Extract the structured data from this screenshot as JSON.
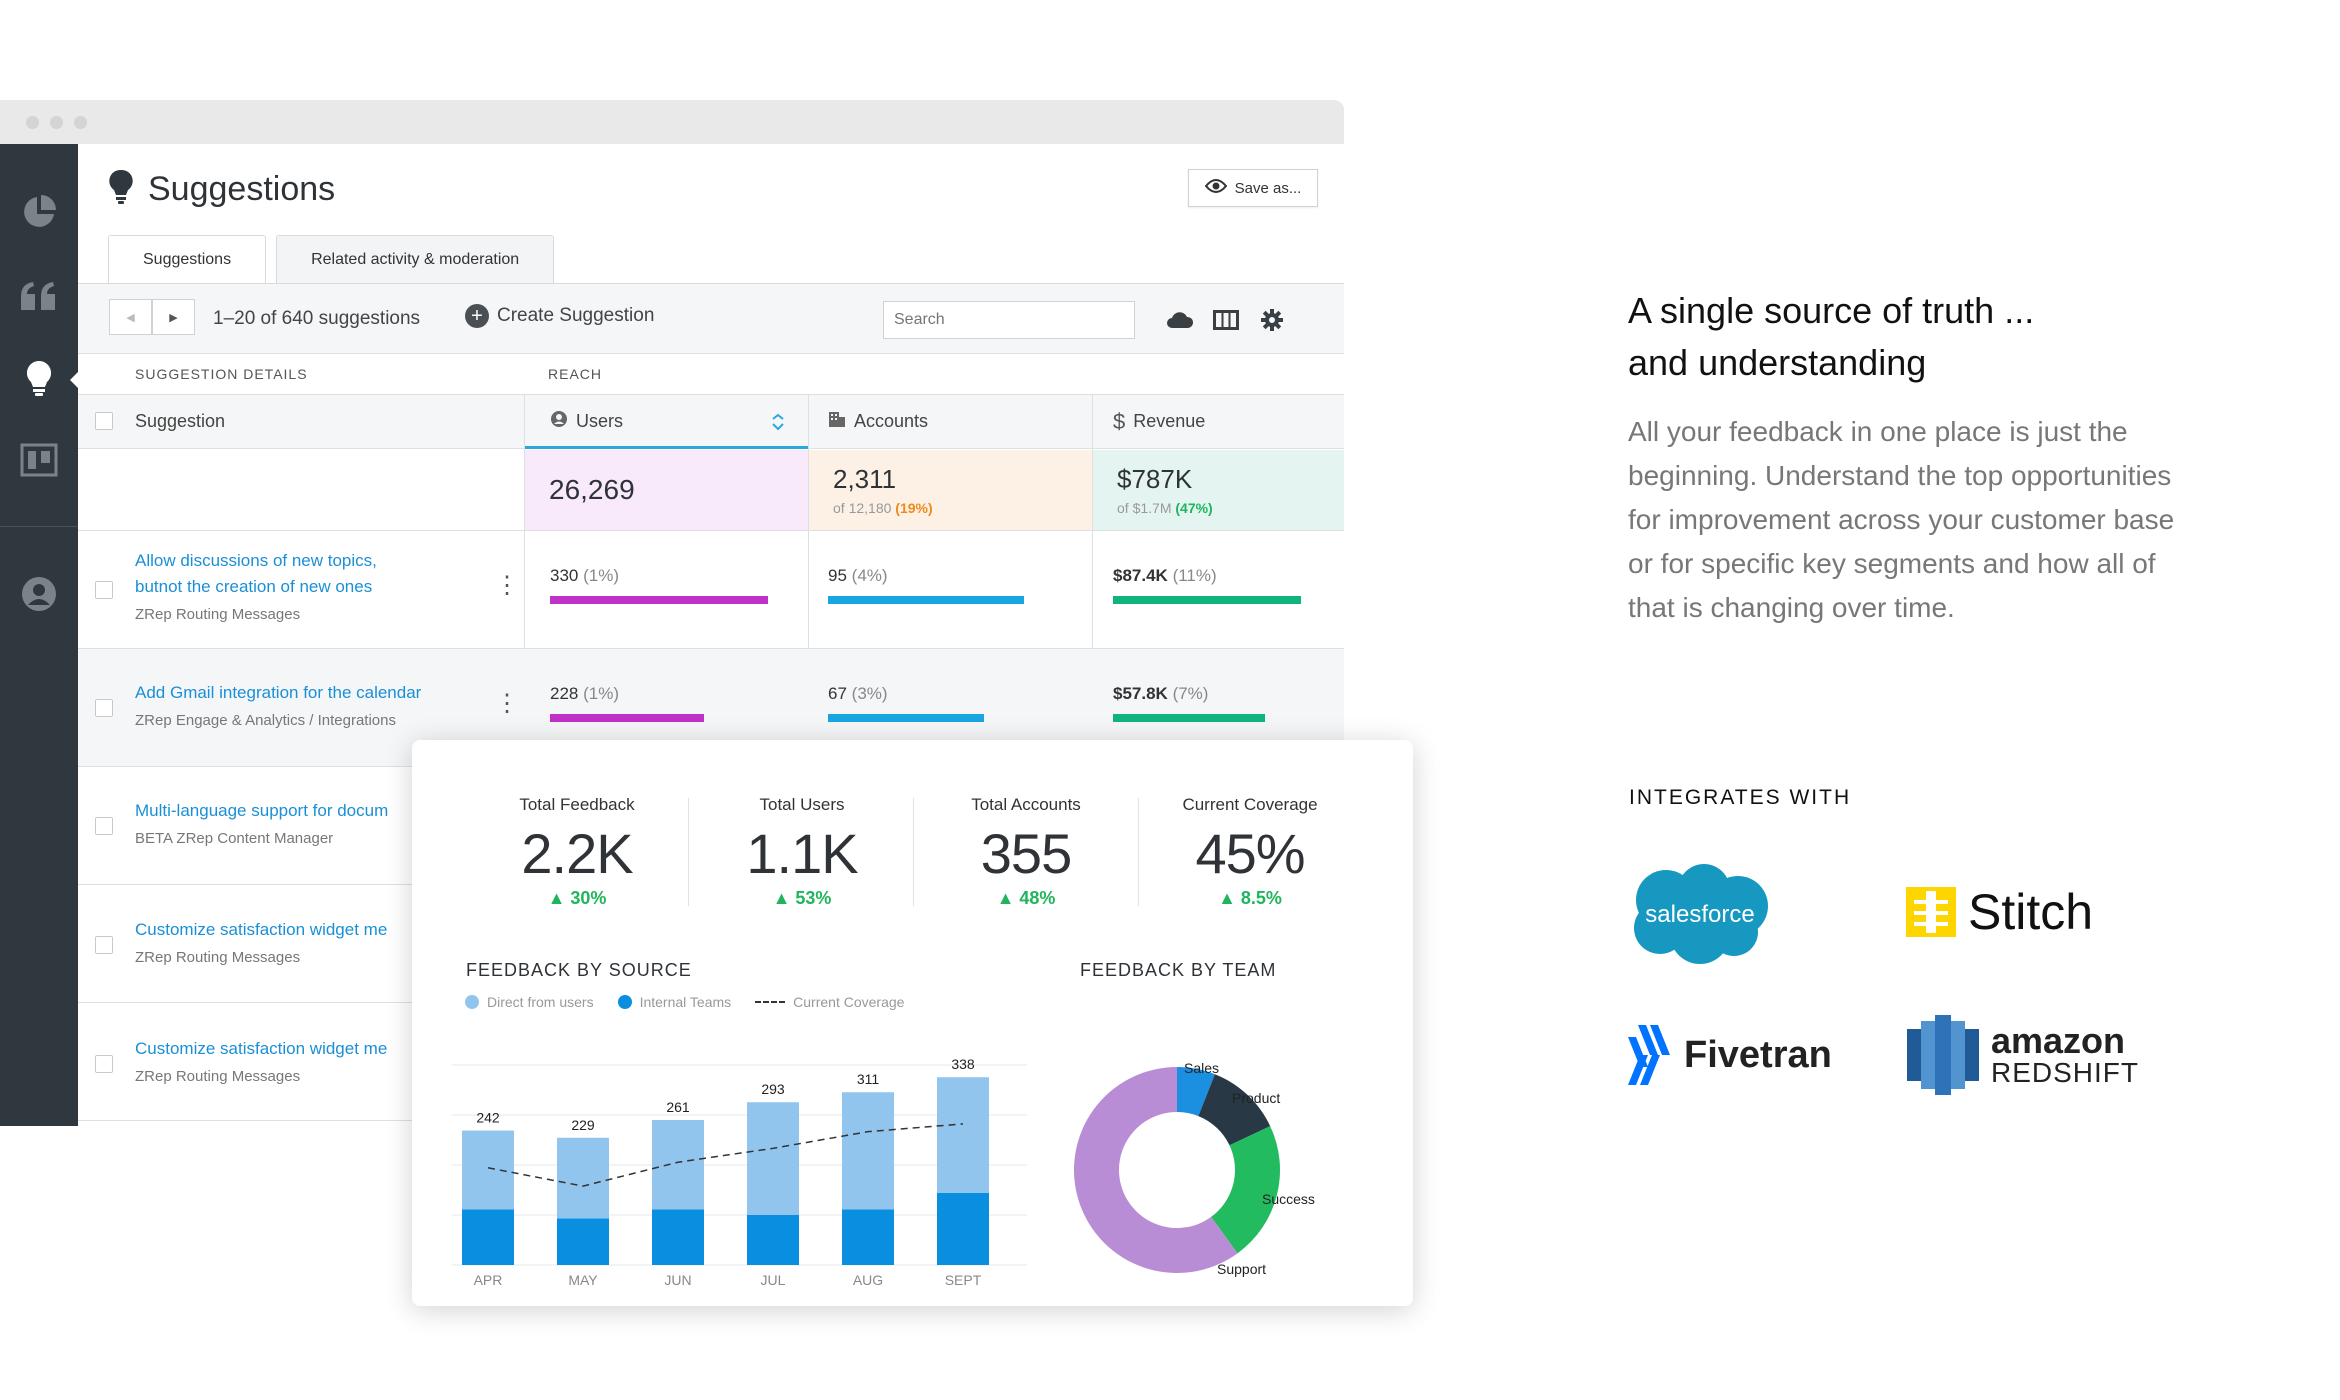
{
  "app": {
    "page_title": "Suggestions",
    "save_label": "Save as...",
    "tabs": [
      "Suggestions",
      "Related activity & moderation"
    ],
    "range_text": "1–20 of 640 suggestions",
    "create_label": "Create Suggestion",
    "search_placeholder": "Search"
  },
  "table": {
    "group_details": "SUGGESTION DETAILS",
    "group_reach": "REACH",
    "columns": {
      "suggestion": "Suggestion",
      "users": "Users",
      "accounts": "Accounts",
      "revenue": "Revenue"
    },
    "totals": {
      "users": "26,269",
      "accounts": "2,311",
      "accounts_of": "of 12,180",
      "accounts_pct": "(19%)",
      "revenue": "$787K",
      "revenue_of": "of $1.7M",
      "revenue_pct": "(47%)"
    },
    "rows": [
      {
        "title_line1": "Allow discussions of new topics,",
        "title_line2": "butnot the creation of new ones",
        "sub": "ZRep Routing Messages",
        "users": "330",
        "users_pct": "(1%)",
        "accounts": "95",
        "accounts_pct": "(4%)",
        "revenue": "$87.4K",
        "revenue_pct": "(11%)"
      },
      {
        "title_line1": "Add Gmail integration for the calendar",
        "sub": "ZRep Engage & Analytics / Integrations",
        "users": "228",
        "users_pct": "(1%)",
        "accounts": "67",
        "accounts_pct": "(3%)",
        "revenue": "$57.8K",
        "revenue_pct": "(7%)"
      },
      {
        "title_line1": "Multi-language support for docum",
        "sub": "BETA ZRep Content Manager"
      },
      {
        "title_line1": "Customize satisfaction widget me",
        "sub": "ZRep Routing Messages"
      },
      {
        "title_line1": "Customize satisfaction widget me",
        "sub": "ZRep Routing Messages"
      }
    ]
  },
  "dashboard": {
    "stats": [
      {
        "label": "Total Feedback",
        "value": "2.2K",
        "delta": "▲ 30%"
      },
      {
        "label": "Total Users",
        "value": "1.1K",
        "delta": "▲ 53%"
      },
      {
        "label": "Total Accounts",
        "value": "355",
        "delta": "▲ 48%"
      },
      {
        "label": "Current Coverage",
        "value": "45%",
        "delta": "▲ 8.5%"
      }
    ],
    "source_title": "FEEDBACK BY SOURCE",
    "team_title": "FEEDBACK BY TEAM",
    "legend": [
      "Direct from users",
      "Internal Teams",
      "Current Coverage"
    ]
  },
  "chart_data": [
    {
      "type": "bar",
      "title": "FEEDBACK BY SOURCE",
      "categories": [
        "APR",
        "MAY",
        "JUN",
        "JUL",
        "AUG",
        "SEPT"
      ],
      "totals": [
        242,
        229,
        261,
        293,
        311,
        338
      ],
      "series": [
        {
          "name": "Direct from users",
          "values": [
            142,
            145,
            161,
            203,
            211,
            208
          ],
          "color": "#92c5ee"
        },
        {
          "name": "Internal Teams",
          "values": [
            100,
            84,
            100,
            90,
            100,
            130
          ],
          "color": "#0a8fe0"
        }
      ],
      "line": {
        "name": "Current Coverage",
        "values": [
          175,
          142,
          185,
          210,
          240,
          254
        ]
      },
      "ylim": [
        0,
        360
      ],
      "stacked": true
    },
    {
      "type": "pie",
      "title": "FEEDBACK BY TEAM",
      "labels": [
        "Sales",
        "Product",
        "Success",
        "Support"
      ],
      "values": [
        6,
        12,
        22,
        60
      ],
      "colors": [
        "#1b8fe0",
        "#283845",
        "#22bb60",
        "#b98cd6"
      ],
      "donut": true
    }
  ],
  "marketing": {
    "heading_line1": "A single source of truth ...",
    "heading_line2": "and understanding",
    "body": "All your feedback in one place is just the beginning. Understand the top opportunities for improvement across your customer base or for specific key segments and how all of that is changing over time.",
    "integrates": "INTEGRATES WITH",
    "logos": {
      "salesforce": "salesforce",
      "stitch": "Stitch",
      "fivetran": "Fivetran",
      "amazon": "amazon",
      "redshift": "REDSHIFT"
    }
  }
}
